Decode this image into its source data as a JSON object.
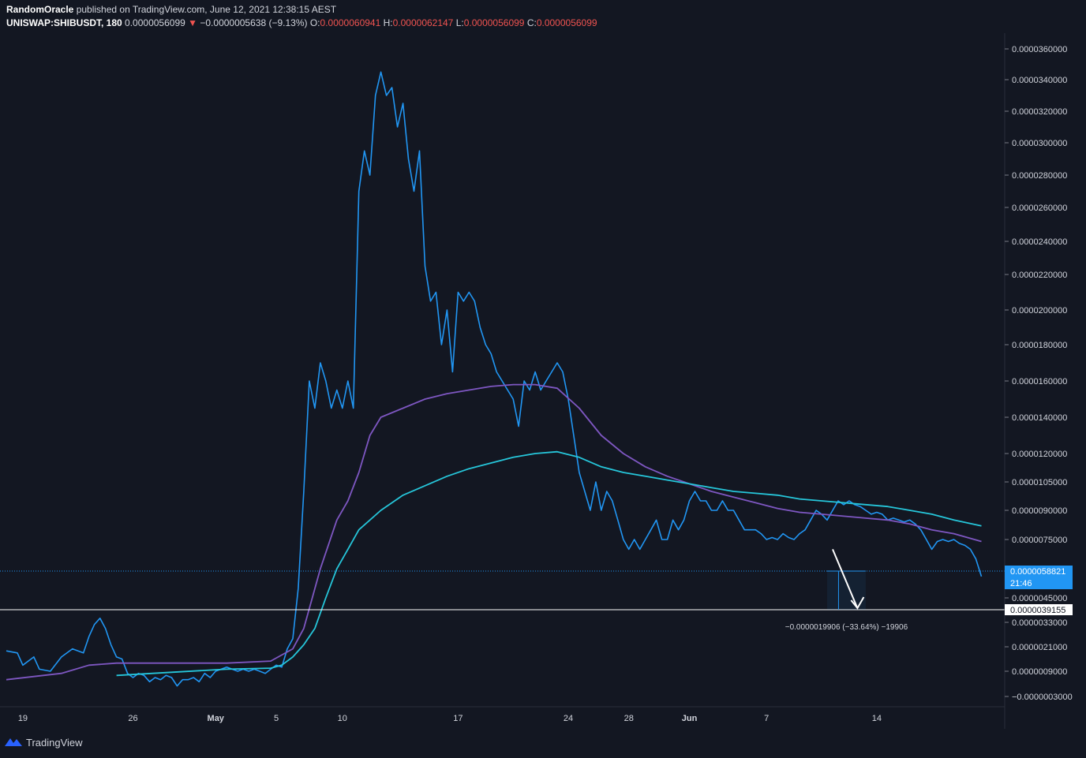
{
  "header": {
    "author": "RandomOracle",
    "published": "published on TradingView.com, June 12, 2021 12:38:15 AEST",
    "symbol": "UNISWAP:SHIBUSDT, 180",
    "last": "0.0000056099",
    "change_arrow": "▼",
    "change": "−0.0000005638 (−9.13%)",
    "open_label": "O:",
    "open": "0.0000060941",
    "high_label": "H:",
    "high": "0.0000062147",
    "low_label": "L:",
    "low": "0.0000056099",
    "close_label": "C:",
    "close": "0.0000056099"
  },
  "footer": {
    "brand": "TradingView",
    "logo_icon": "tradingview-logo-icon"
  },
  "colors": {
    "background": "#131722",
    "price_line": "#2196f3",
    "ma_purple": "#7e57c2",
    "ma_teal": "#26c6da",
    "axis_text": "#d1d4dc",
    "price_tag": "#2196f3",
    "down": "#ef5350"
  },
  "chart_data": {
    "type": "line",
    "y_tick_labels": [
      "0.0000360000",
      "0.0000340000",
      "0.0000320000",
      "0.0000300000",
      "0.0000280000",
      "0.0000260000",
      "0.0000240000",
      "0.0000220000",
      "0.0000200000",
      "0.0000180000",
      "0.0000160000",
      "0.0000140000",
      "0.0000120000",
      "0.0000105000",
      "0.0000090000",
      "0.0000075000",
      "0.0000045000",
      "0.0000033000",
      "0.0000021000",
      "0.0000009000",
      "−0.0000003000"
    ],
    "x_tick_labels": [
      "19",
      "26",
      "May",
      "5",
      "10",
      "17",
      "24",
      "28",
      "Jun",
      "7",
      "14"
    ],
    "grid": false,
    "current_price_tag": {
      "value": "0.0000058821",
      "countdown": "21:46"
    },
    "target_level": {
      "value": "0.0000039155"
    },
    "measure_label": "−0.0000019906 (−33.64%) −19906",
    "series": [
      {
        "role": "price",
        "values": [
          [
            0,
            1.9
          ],
          [
            2,
            1.8
          ],
          [
            3,
            1.2
          ],
          [
            5,
            1.6
          ],
          [
            6,
            1.0
          ],
          [
            8,
            0.9
          ],
          [
            10,
            1.6
          ],
          [
            12,
            2.0
          ],
          [
            14,
            1.8
          ],
          [
            15,
            2.6
          ],
          [
            16,
            3.2
          ],
          [
            17,
            3.5
          ],
          [
            18,
            3.0
          ],
          [
            19,
            2.2
          ],
          [
            20,
            1.6
          ],
          [
            21,
            1.5
          ],
          [
            22,
            0.8
          ],
          [
            23,
            0.6
          ],
          [
            24,
            0.8
          ],
          [
            25,
            0.7
          ],
          [
            26,
            0.4
          ],
          [
            27,
            0.6
          ],
          [
            28,
            0.5
          ],
          [
            29,
            0.7
          ],
          [
            30,
            0.6
          ],
          [
            31,
            0.2
          ],
          [
            32,
            0.5
          ],
          [
            33,
            0.5
          ],
          [
            34,
            0.6
          ],
          [
            35,
            0.4
          ],
          [
            36,
            0.8
          ],
          [
            37,
            0.6
          ],
          [
            38,
            0.9
          ],
          [
            39,
            1.0
          ],
          [
            40,
            1.1
          ],
          [
            41,
            1.0
          ],
          [
            42,
            0.9
          ],
          [
            43,
            1.0
          ],
          [
            44,
            0.9
          ],
          [
            45,
            1.0
          ],
          [
            46,
            0.9
          ],
          [
            47,
            0.8
          ],
          [
            48,
            1.0
          ],
          [
            49,
            1.2
          ],
          [
            50,
            1.1
          ],
          [
            51,
            2.0
          ],
          [
            52,
            2.5
          ],
          [
            53,
            5.0
          ],
          [
            54,
            10.0
          ],
          [
            55,
            16.0
          ],
          [
            56,
            14.5
          ],
          [
            57,
            17.0
          ],
          [
            58,
            16.0
          ],
          [
            59,
            14.5
          ],
          [
            60,
            15.5
          ],
          [
            61,
            14.5
          ],
          [
            62,
            16.0
          ],
          [
            63,
            14.5
          ],
          [
            64,
            27.0
          ],
          [
            65,
            29.5
          ],
          [
            66,
            28.0
          ],
          [
            67,
            33.0
          ],
          [
            68,
            34.5
          ],
          [
            69,
            33.0
          ],
          [
            70,
            33.5
          ],
          [
            71,
            31.0
          ],
          [
            72,
            32.5
          ],
          [
            73,
            29.0
          ],
          [
            74,
            27.0
          ],
          [
            75,
            29.5
          ],
          [
            76,
            22.5
          ],
          [
            77,
            20.5
          ],
          [
            78,
            21.0
          ],
          [
            79,
            18.0
          ],
          [
            80,
            20.0
          ],
          [
            81,
            16.5
          ],
          [
            82,
            21.0
          ],
          [
            83,
            20.5
          ],
          [
            84,
            21.0
          ],
          [
            85,
            20.5
          ],
          [
            86,
            19.0
          ],
          [
            87,
            18.0
          ],
          [
            88,
            17.5
          ],
          [
            89,
            16.5
          ],
          [
            90,
            16.0
          ],
          [
            91,
            15.5
          ],
          [
            92,
            15.0
          ],
          [
            93,
            13.5
          ],
          [
            94,
            16.0
          ],
          [
            95,
            15.5
          ],
          [
            96,
            16.5
          ],
          [
            97,
            15.5
          ],
          [
            98,
            16.0
          ],
          [
            99,
            16.5
          ],
          [
            100,
            17.0
          ],
          [
            101,
            16.5
          ],
          [
            102,
            15.0
          ],
          [
            103,
            13.0
          ],
          [
            104,
            11.0
          ],
          [
            105,
            10.0
          ],
          [
            106,
            9.0
          ],
          [
            107,
            10.5
          ],
          [
            108,
            9.0
          ],
          [
            109,
            10.0
          ],
          [
            110,
            9.5
          ],
          [
            111,
            8.5
          ],
          [
            112,
            7.5
          ],
          [
            113,
            7.0
          ],
          [
            114,
            7.5
          ],
          [
            115,
            7.0
          ],
          [
            116,
            7.5
          ],
          [
            117,
            8.0
          ],
          [
            118,
            8.5
          ],
          [
            119,
            7.5
          ],
          [
            120,
            7.5
          ],
          [
            121,
            8.5
          ],
          [
            122,
            8.0
          ],
          [
            123,
            8.5
          ],
          [
            124,
            9.5
          ],
          [
            125,
            10.0
          ],
          [
            126,
            9.5
          ],
          [
            127,
            9.5
          ],
          [
            128,
            9.0
          ],
          [
            129,
            9.0
          ],
          [
            130,
            9.5
          ],
          [
            131,
            9.0
          ],
          [
            132,
            9.0
          ],
          [
            133,
            8.5
          ],
          [
            134,
            8.0
          ],
          [
            135,
            8.0
          ],
          [
            136,
            8.0
          ],
          [
            137,
            7.8
          ],
          [
            138,
            7.5
          ],
          [
            139,
            7.6
          ],
          [
            140,
            7.5
          ],
          [
            141,
            7.8
          ],
          [
            142,
            7.6
          ],
          [
            143,
            7.5
          ],
          [
            144,
            7.8
          ],
          [
            145,
            8.0
          ],
          [
            146,
            8.5
          ],
          [
            147,
            9.0
          ],
          [
            148,
            8.8
          ],
          [
            149,
            8.5
          ],
          [
            150,
            9.0
          ],
          [
            151,
            9.5
          ],
          [
            152,
            9.3
          ],
          [
            153,
            9.5
          ],
          [
            154,
            9.3
          ],
          [
            155,
            9.2
          ],
          [
            156,
            9.0
          ],
          [
            157,
            8.8
          ],
          [
            158,
            8.9
          ],
          [
            159,
            8.8
          ],
          [
            160,
            8.5
          ],
          [
            161,
            8.6
          ],
          [
            162,
            8.5
          ],
          [
            163,
            8.4
          ],
          [
            164,
            8.5
          ],
          [
            165,
            8.3
          ],
          [
            166,
            8.0
          ],
          [
            167,
            7.5
          ],
          [
            168,
            7.0
          ],
          [
            169,
            7.4
          ],
          [
            170,
            7.5
          ],
          [
            171,
            7.4
          ],
          [
            172,
            7.5
          ],
          [
            173,
            7.3
          ],
          [
            174,
            7.2
          ],
          [
            175,
            7.0
          ],
          [
            176,
            6.5
          ],
          [
            177,
            5.6
          ]
        ]
      },
      {
        "role": "ma",
        "values": [
          [
            0,
            0.5
          ],
          [
            10,
            0.8
          ],
          [
            15,
            1.2
          ],
          [
            20,
            1.3
          ],
          [
            30,
            1.3
          ],
          [
            40,
            1.3
          ],
          [
            48,
            1.4
          ],
          [
            52,
            2.0
          ],
          [
            54,
            3.0
          ],
          [
            57,
            6.0
          ],
          [
            60,
            8.5
          ],
          [
            62,
            9.5
          ],
          [
            64,
            11.0
          ],
          [
            66,
            13.0
          ],
          [
            68,
            14.0
          ],
          [
            72,
            14.5
          ],
          [
            76,
            15.0
          ],
          [
            80,
            15.3
          ],
          [
            84,
            15.5
          ],
          [
            88,
            15.7
          ],
          [
            92,
            15.8
          ],
          [
            96,
            15.8
          ],
          [
            100,
            15.6
          ],
          [
            104,
            14.5
          ],
          [
            108,
            13.0
          ],
          [
            112,
            12.0
          ],
          [
            116,
            11.3
          ],
          [
            120,
            10.8
          ],
          [
            124,
            10.4
          ],
          [
            128,
            10.0
          ],
          [
            132,
            9.7
          ],
          [
            136,
            9.4
          ],
          [
            140,
            9.1
          ],
          [
            144,
            8.9
          ],
          [
            148,
            8.8
          ],
          [
            152,
            8.7
          ],
          [
            156,
            8.6
          ],
          [
            160,
            8.5
          ],
          [
            164,
            8.3
          ],
          [
            168,
            8.0
          ],
          [
            172,
            7.8
          ],
          [
            177,
            7.4
          ]
        ]
      },
      {
        "role": "ma",
        "values": [
          [
            20,
            0.7
          ],
          [
            30,
            0.85
          ],
          [
            40,
            1.0
          ],
          [
            48,
            1.05
          ],
          [
            50,
            1.2
          ],
          [
            52,
            1.6
          ],
          [
            54,
            2.2
          ],
          [
            56,
            3.0
          ],
          [
            58,
            4.5
          ],
          [
            60,
            6.0
          ],
          [
            62,
            7.0
          ],
          [
            64,
            8.0
          ],
          [
            68,
            9.0
          ],
          [
            72,
            9.8
          ],
          [
            76,
            10.3
          ],
          [
            80,
            10.8
          ],
          [
            84,
            11.2
          ],
          [
            88,
            11.5
          ],
          [
            92,
            11.8
          ],
          [
            96,
            12.0
          ],
          [
            100,
            12.1
          ],
          [
            104,
            11.8
          ],
          [
            108,
            11.3
          ],
          [
            112,
            11.0
          ],
          [
            116,
            10.8
          ],
          [
            120,
            10.6
          ],
          [
            124,
            10.4
          ],
          [
            128,
            10.2
          ],
          [
            132,
            10.0
          ],
          [
            136,
            9.9
          ],
          [
            140,
            9.8
          ],
          [
            144,
            9.6
          ],
          [
            148,
            9.5
          ],
          [
            152,
            9.4
          ],
          [
            156,
            9.3
          ],
          [
            160,
            9.2
          ],
          [
            164,
            9.0
          ],
          [
            168,
            8.8
          ],
          [
            172,
            8.5
          ],
          [
            177,
            8.2
          ]
        ]
      }
    ]
  }
}
